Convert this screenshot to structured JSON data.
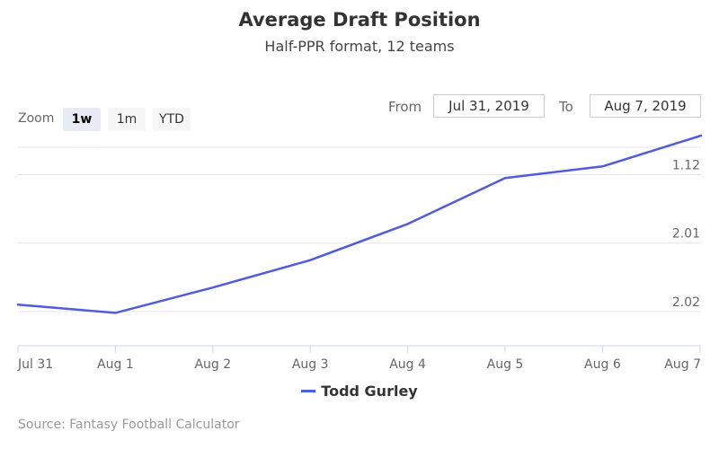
{
  "title": "Average Draft Position",
  "subtitle": "Half-PPR format, 12 teams",
  "zoom": {
    "label": "Zoom",
    "buttons": [
      {
        "label": "1w",
        "selected": true
      },
      {
        "label": "1m",
        "selected": false
      },
      {
        "label": "YTD",
        "selected": false
      }
    ]
  },
  "range": {
    "from_label": "From",
    "from_value": "Jul 31, 2019",
    "to_label": "To",
    "to_value": "Aug 7, 2019"
  },
  "source": "Source: Fantasy Football Calculator",
  "colors": {
    "series": "#4f5be0",
    "grid": "#e6e6e6",
    "axis_text": "#666666"
  },
  "chart_data": {
    "type": "line",
    "title": "Average Draft Position",
    "subtitle": "Half-PPR format, 12 teams",
    "x": [
      "Jul 31",
      "Aug 1",
      "Aug 2",
      "Aug 3",
      "Aug 4",
      "Aug 5",
      "Aug 6",
      "Aug 7"
    ],
    "y_ticks": [
      "1.12",
      "2.01",
      "2.02"
    ],
    "y_axis_reversed": true,
    "ylim": [
      11.6,
      14.5
    ],
    "series": [
      {
        "name": "Todd Gurley",
        "values": [
          13.9,
          14.02,
          13.65,
          13.25,
          12.72,
          12.05,
          11.88,
          11.43
        ]
      }
    ],
    "grid": true,
    "legend": "bottom-center"
  }
}
